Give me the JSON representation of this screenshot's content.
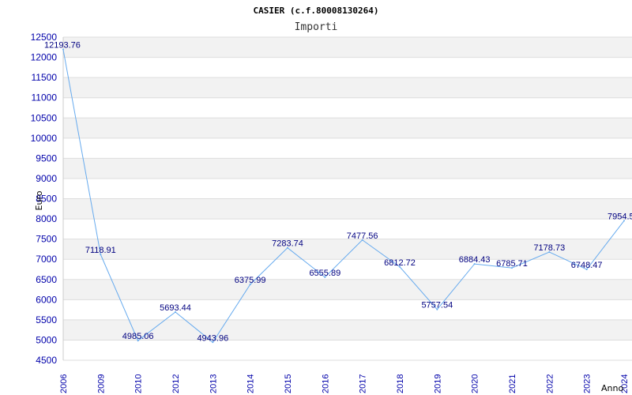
{
  "chart_data": {
    "type": "line",
    "title": "CASIER (c.f.80008130264)",
    "subtitle": "Importi",
    "xlabel": "Anno",
    "ylabel": "Euro",
    "categories": [
      "2006",
      "2009",
      "2010",
      "2012",
      "2013",
      "2014",
      "2015",
      "2016",
      "2017",
      "2018",
      "2019",
      "2020",
      "2021",
      "2022",
      "2023",
      "2024"
    ],
    "series": [
      {
        "values": [
          12193.76,
          7118.91,
          4985.06,
          5693.44,
          4943.96,
          6375.99,
          7283.74,
          6555.89,
          7477.56,
          6812.72,
          5757.54,
          6884.43,
          6785.71,
          7178.73,
          6748.47,
          7954.5
        ],
        "labels": [
          "12193.76",
          "7118.91",
          "4985.06",
          "5693.44",
          "4943.96",
          "6375.99",
          "7283.74",
          "6555.89",
          "7477.56",
          "6812.72",
          "5757.54",
          "6884.43",
          "6785.71",
          "7178.73",
          "6748.47",
          "7954.5"
        ]
      }
    ],
    "ylim": [
      4500,
      12500
    ],
    "yticks": [
      4500,
      5000,
      5500,
      6000,
      6500,
      7000,
      7500,
      8000,
      8500,
      9000,
      9500,
      10000,
      10500,
      11000,
      11500,
      12000,
      12500
    ],
    "grid": true,
    "line_color": "#66aaee",
    "tick_color": "#0000aa",
    "band_color": "#f2f2f2"
  }
}
